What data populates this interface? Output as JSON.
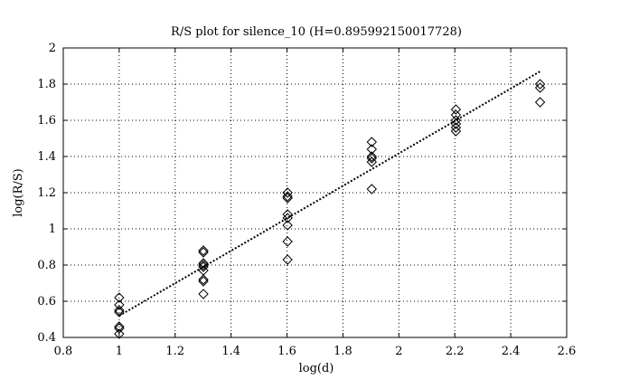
{
  "chart_data": {
    "type": "scatter",
    "title": "R/S plot for silence_10 (H=0.895992150017728)",
    "xlabel": "log(d)",
    "ylabel": "log(R/S)",
    "xlim": [
      0.8,
      2.6
    ],
    "ylim": [
      0.4,
      2.0
    ],
    "xticks": [
      0.8,
      1,
      1.2,
      1.4,
      1.6,
      1.8,
      2,
      2.2,
      2.4,
      2.6
    ],
    "xtick_labels": [
      "0.8",
      "1",
      "1.2",
      "1.4",
      "1.6",
      "1.8",
      "2",
      "2.2",
      "2.4",
      "2.6"
    ],
    "yticks": [
      0.4,
      0.6,
      0.8,
      1.0,
      1.2,
      1.4,
      1.6,
      1.8,
      2.0
    ],
    "ytick_labels": [
      "0.4",
      "0.6",
      "0.8",
      "1",
      "1.2",
      "1.4",
      "1.6",
      "1.8",
      "2"
    ],
    "grid": true,
    "marker": "diamond",
    "points": [
      {
        "x": 1.0,
        "y": 0.62
      },
      {
        "x": 1.0,
        "y": 0.58
      },
      {
        "x": 1.0,
        "y": 0.55
      },
      {
        "x": 1.0,
        "y": 0.54
      },
      {
        "x": 1.0,
        "y": 0.46
      },
      {
        "x": 1.0,
        "y": 0.45
      },
      {
        "x": 1.0,
        "y": 0.42
      },
      {
        "x": 1.301,
        "y": 0.88
      },
      {
        "x": 1.301,
        "y": 0.87
      },
      {
        "x": 1.301,
        "y": 0.81
      },
      {
        "x": 1.301,
        "y": 0.8
      },
      {
        "x": 1.301,
        "y": 0.79
      },
      {
        "x": 1.301,
        "y": 0.77
      },
      {
        "x": 1.301,
        "y": 0.72
      },
      {
        "x": 1.301,
        "y": 0.71
      },
      {
        "x": 1.301,
        "y": 0.64
      },
      {
        "x": 1.602,
        "y": 1.2
      },
      {
        "x": 1.602,
        "y": 1.18
      },
      {
        "x": 1.602,
        "y": 1.17
      },
      {
        "x": 1.602,
        "y": 1.08
      },
      {
        "x": 1.602,
        "y": 1.06
      },
      {
        "x": 1.602,
        "y": 1.02
      },
      {
        "x": 1.602,
        "y": 0.93
      },
      {
        "x": 1.602,
        "y": 0.83
      },
      {
        "x": 1.903,
        "y": 1.48
      },
      {
        "x": 1.903,
        "y": 1.44
      },
      {
        "x": 1.903,
        "y": 1.4
      },
      {
        "x": 1.903,
        "y": 1.39
      },
      {
        "x": 1.903,
        "y": 1.37
      },
      {
        "x": 1.903,
        "y": 1.22
      },
      {
        "x": 2.204,
        "y": 1.66
      },
      {
        "x": 2.204,
        "y": 1.63
      },
      {
        "x": 2.204,
        "y": 1.6
      },
      {
        "x": 2.204,
        "y": 1.58
      },
      {
        "x": 2.204,
        "y": 1.56
      },
      {
        "x": 2.204,
        "y": 1.54
      },
      {
        "x": 2.505,
        "y": 1.8
      },
      {
        "x": 2.505,
        "y": 1.78
      },
      {
        "x": 2.505,
        "y": 1.7
      }
    ],
    "fit_line": {
      "x": [
        1.0,
        2.505
      ],
      "y": [
        0.52,
        1.87
      ]
    }
  }
}
